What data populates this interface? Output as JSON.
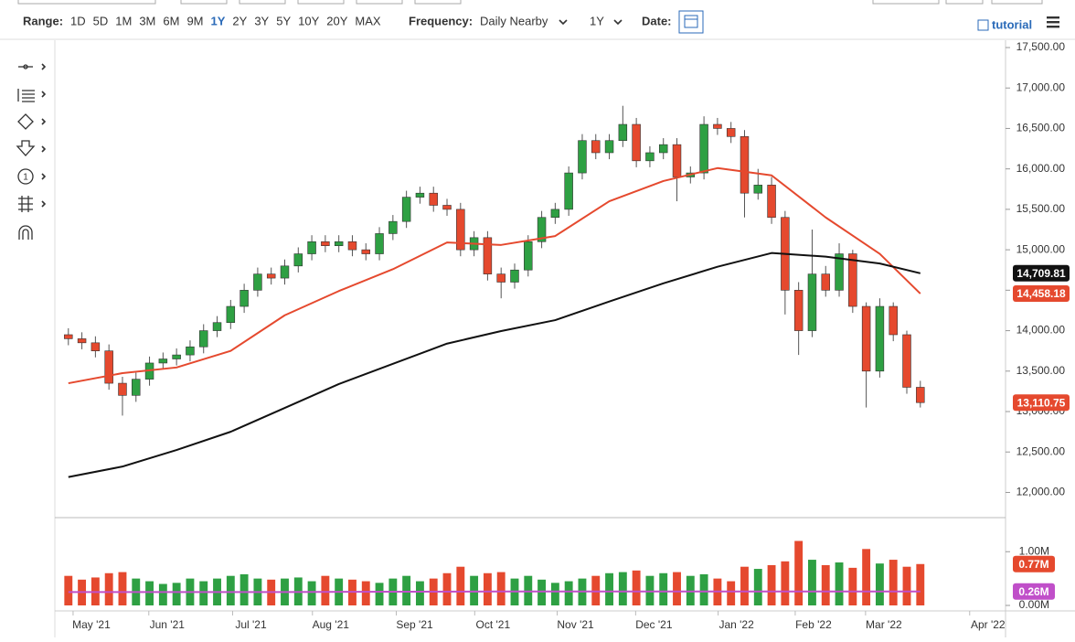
{
  "toolbar": {
    "range_label": "Range:",
    "ranges": [
      "1D",
      "5D",
      "1M",
      "3M",
      "6M",
      "9M",
      "1Y",
      "2Y",
      "3Y",
      "5Y",
      "10Y",
      "20Y",
      "MAX"
    ],
    "active_range_index": 6,
    "frequency_label": "Frequency:",
    "frequency": "Daily Nearby",
    "period": "1Y",
    "date_label": "Date:",
    "tutorial": "tutorial"
  },
  "chart_data": {
    "type": "candlestick",
    "up_color": "#2ea043",
    "down_color": "#e5492e",
    "categories": [
      null,
      null,
      null,
      null,
      null,
      null,
      null,
      null,
      null,
      null,
      null,
      null,
      null,
      null,
      null,
      null,
      null,
      null,
      null,
      null,
      null,
      null,
      null,
      null,
      null,
      null,
      null,
      null,
      null,
      null,
      null,
      null,
      null,
      null,
      null,
      null,
      null,
      null,
      null,
      null,
      null,
      null,
      null,
      null,
      null,
      null,
      null,
      null,
      null,
      null,
      null,
      null,
      null,
      null,
      null,
      null,
      null,
      null,
      null,
      null,
      null,
      null,
      null,
      null
    ],
    "open": [
      13950,
      13900,
      13850,
      13750,
      13350,
      13200,
      13400,
      13600,
      13650,
      13700,
      13800,
      14000,
      14100,
      14300,
      14500,
      14700,
      14650,
      14800,
      14950,
      15100,
      15050,
      15100,
      15000,
      14950,
      15200,
      15350,
      15650,
      15700,
      15550,
      15500,
      15000,
      15150,
      14700,
      14600,
      14750,
      15100,
      15400,
      15500,
      15950,
      16350,
      16200,
      16350,
      16550,
      16100,
      16200,
      16300,
      15900,
      15950,
      16550,
      16500,
      16400,
      15700,
      15800,
      15400,
      14500,
      14000,
      14700,
      14500,
      14950,
      14300,
      13500,
      14300,
      13950,
      13300
    ],
    "high": [
      14030,
      13980,
      13930,
      13830,
      13430,
      13480,
      13680,
      13730,
      13780,
      13880,
      14080,
      14180,
      14380,
      14580,
      14780,
      14780,
      14880,
      15030,
      15180,
      15180,
      15180,
      15180,
      15080,
      15280,
      15430,
      15730,
      15780,
      15780,
      15630,
      15580,
      15230,
      15230,
      14780,
      14830,
      15180,
      15480,
      15580,
      16030,
      16430,
      16430,
      16430,
      16780,
      16630,
      16280,
      16380,
      16380,
      16030,
      16650,
      16630,
      16580,
      16480,
      16000,
      15900,
      15480,
      14600,
      15250,
      14800,
      15080,
      15000,
      14350,
      14400,
      14350,
      14000,
      13380
    ],
    "low": [
      13820,
      13770,
      13670,
      13270,
      12950,
      13120,
      13320,
      13520,
      13570,
      13620,
      13720,
      13920,
      14020,
      14220,
      14420,
      14570,
      14570,
      14720,
      14870,
      14970,
      14970,
      14920,
      14870,
      14870,
      15120,
      15270,
      15570,
      15470,
      15420,
      14920,
      14920,
      14620,
      14400,
      14520,
      14670,
      15020,
      15320,
      15420,
      15870,
      16120,
      16120,
      16270,
      16020,
      16020,
      16120,
      15600,
      15820,
      15870,
      16420,
      16320,
      15400,
      15620,
      15320,
      14200,
      13700,
      13920,
      14420,
      14420,
      14220,
      13050,
      13420,
      13870,
      13220,
      13050
    ],
    "close": [
      13900,
      13850,
      13750,
      13350,
      13200,
      13400,
      13600,
      13650,
      13700,
      13800,
      14000,
      14100,
      14300,
      14500,
      14700,
      14650,
      14800,
      14950,
      15100,
      15050,
      15100,
      15000,
      14950,
      15200,
      15350,
      15650,
      15700,
      15550,
      15500,
      15000,
      15150,
      14700,
      14600,
      14750,
      15100,
      15400,
      15500,
      15950,
      16350,
      16200,
      16350,
      16550,
      16100,
      16200,
      16300,
      15900,
      15950,
      16550,
      16500,
      16400,
      15700,
      15800,
      15400,
      14500,
      14000,
      14700,
      14500,
      14950,
      14300,
      13500,
      14300,
      13950,
      13300,
      13110.75
    ],
    "close_tag": {
      "value": 13110.75,
      "label": "13,110.75"
    },
    "lines": [
      {
        "color": "#e5492e",
        "x": [
          0,
          4,
          8,
          12,
          16,
          20,
          24,
          28,
          32,
          36,
          40,
          44,
          48,
          52,
          56,
          60,
          63
        ],
        "values": [
          13350,
          13475,
          13545,
          13750,
          14190,
          14490,
          14760,
          15090,
          15060,
          15170,
          15600,
          15850,
          16010,
          15920,
          15400,
          14950,
          14458.18
        ],
        "tag": {
          "value": 14458.18,
          "label": "14,458.18"
        }
      },
      {
        "color": "#111111",
        "x": [
          0,
          4,
          8,
          12,
          16,
          20,
          24,
          28,
          32,
          36,
          40,
          44,
          48,
          52,
          56,
          60,
          63
        ],
        "values": [
          12190,
          12320,
          12525,
          12750,
          13045,
          13340,
          13590,
          13840,
          13995,
          14130,
          14360,
          14585,
          14790,
          14960,
          14915,
          14830,
          14709.81
        ],
        "tag": {
          "value": 14709.81,
          "label": "14,709.81"
        }
      }
    ],
    "xlim": [
      -1,
      69.3
    ],
    "xticks": [
      {
        "value": 1.7,
        "label": "May '21"
      },
      {
        "value": 7.3,
        "label": "Jun '21"
      },
      {
        "value": 13.5,
        "label": "Jul '21"
      },
      {
        "value": 19.4,
        "label": "Aug '21"
      },
      {
        "value": 25.6,
        "label": "Sep '21"
      },
      {
        "value": 31.4,
        "label": "Oct '21"
      },
      {
        "value": 37.5,
        "label": "Nov '21"
      },
      {
        "value": 43.3,
        "label": "Dec '21"
      },
      {
        "value": 49.4,
        "label": "Jan '22"
      },
      {
        "value": 55.1,
        "label": "Feb '22"
      },
      {
        "value": 60.3,
        "label": "Mar '22"
      },
      {
        "value": 68,
        "label": "Apr '22"
      }
    ],
    "ylim": [
      11700,
      17500
    ],
    "yticks": [
      {
        "value": 12000,
        "label": "12,000.00"
      },
      {
        "value": 12500,
        "label": "12,500.00"
      },
      {
        "value": 13000,
        "label": "13,000.00"
      },
      {
        "value": 13500,
        "label": "13,500.00"
      },
      {
        "value": 14000,
        "label": "14,000.00"
      },
      {
        "value": 14500,
        "label": "14,500.00"
      },
      {
        "value": 15000,
        "label": "15,000.00"
      },
      {
        "value": 15500,
        "label": "15,500.00"
      },
      {
        "value": 16000,
        "label": "16,000.00"
      },
      {
        "value": 16500,
        "label": "16,500.00"
      },
      {
        "value": 17000,
        "label": "17,000.00"
      },
      {
        "value": 17500,
        "label": "17,500.00"
      }
    ],
    "volume": {
      "values": [
        0.55,
        0.48,
        0.52,
        0.6,
        0.62,
        0.5,
        0.45,
        0.4,
        0.42,
        0.5,
        0.45,
        0.5,
        0.55,
        0.58,
        0.5,
        0.48,
        0.5,
        0.52,
        0.45,
        0.55,
        0.5,
        0.48,
        0.45,
        0.42,
        0.5,
        0.55,
        0.45,
        0.5,
        0.6,
        0.72,
        0.55,
        0.6,
        0.62,
        0.5,
        0.55,
        0.48,
        0.42,
        0.45,
        0.5,
        0.55,
        0.6,
        0.62,
        0.65,
        0.55,
        0.6,
        0.62,
        0.55,
        0.58,
        0.5,
        0.45,
        0.72,
        0.68,
        0.75,
        0.82,
        1.2,
        0.85,
        0.75,
        0.8,
        0.7,
        1.05,
        0.78,
        0.85,
        0.72,
        0.77
      ],
      "tag": {
        "value": 0.77,
        "label": "0.77M"
      },
      "average": {
        "color": "#c04fc9",
        "x": [
          0,
          16,
          32,
          48,
          63
        ],
        "values": [
          0.25,
          0.25,
          0.26,
          0.26,
          0.26
        ],
        "tag": {
          "value": 0.26,
          "label": "0.26M"
        }
      },
      "ylim": [
        0,
        1.6
      ],
      "yticks": [
        {
          "value": 0,
          "label": "0.00M"
        },
        {
          "value": 1,
          "label": "1.00M"
        }
      ]
    }
  }
}
